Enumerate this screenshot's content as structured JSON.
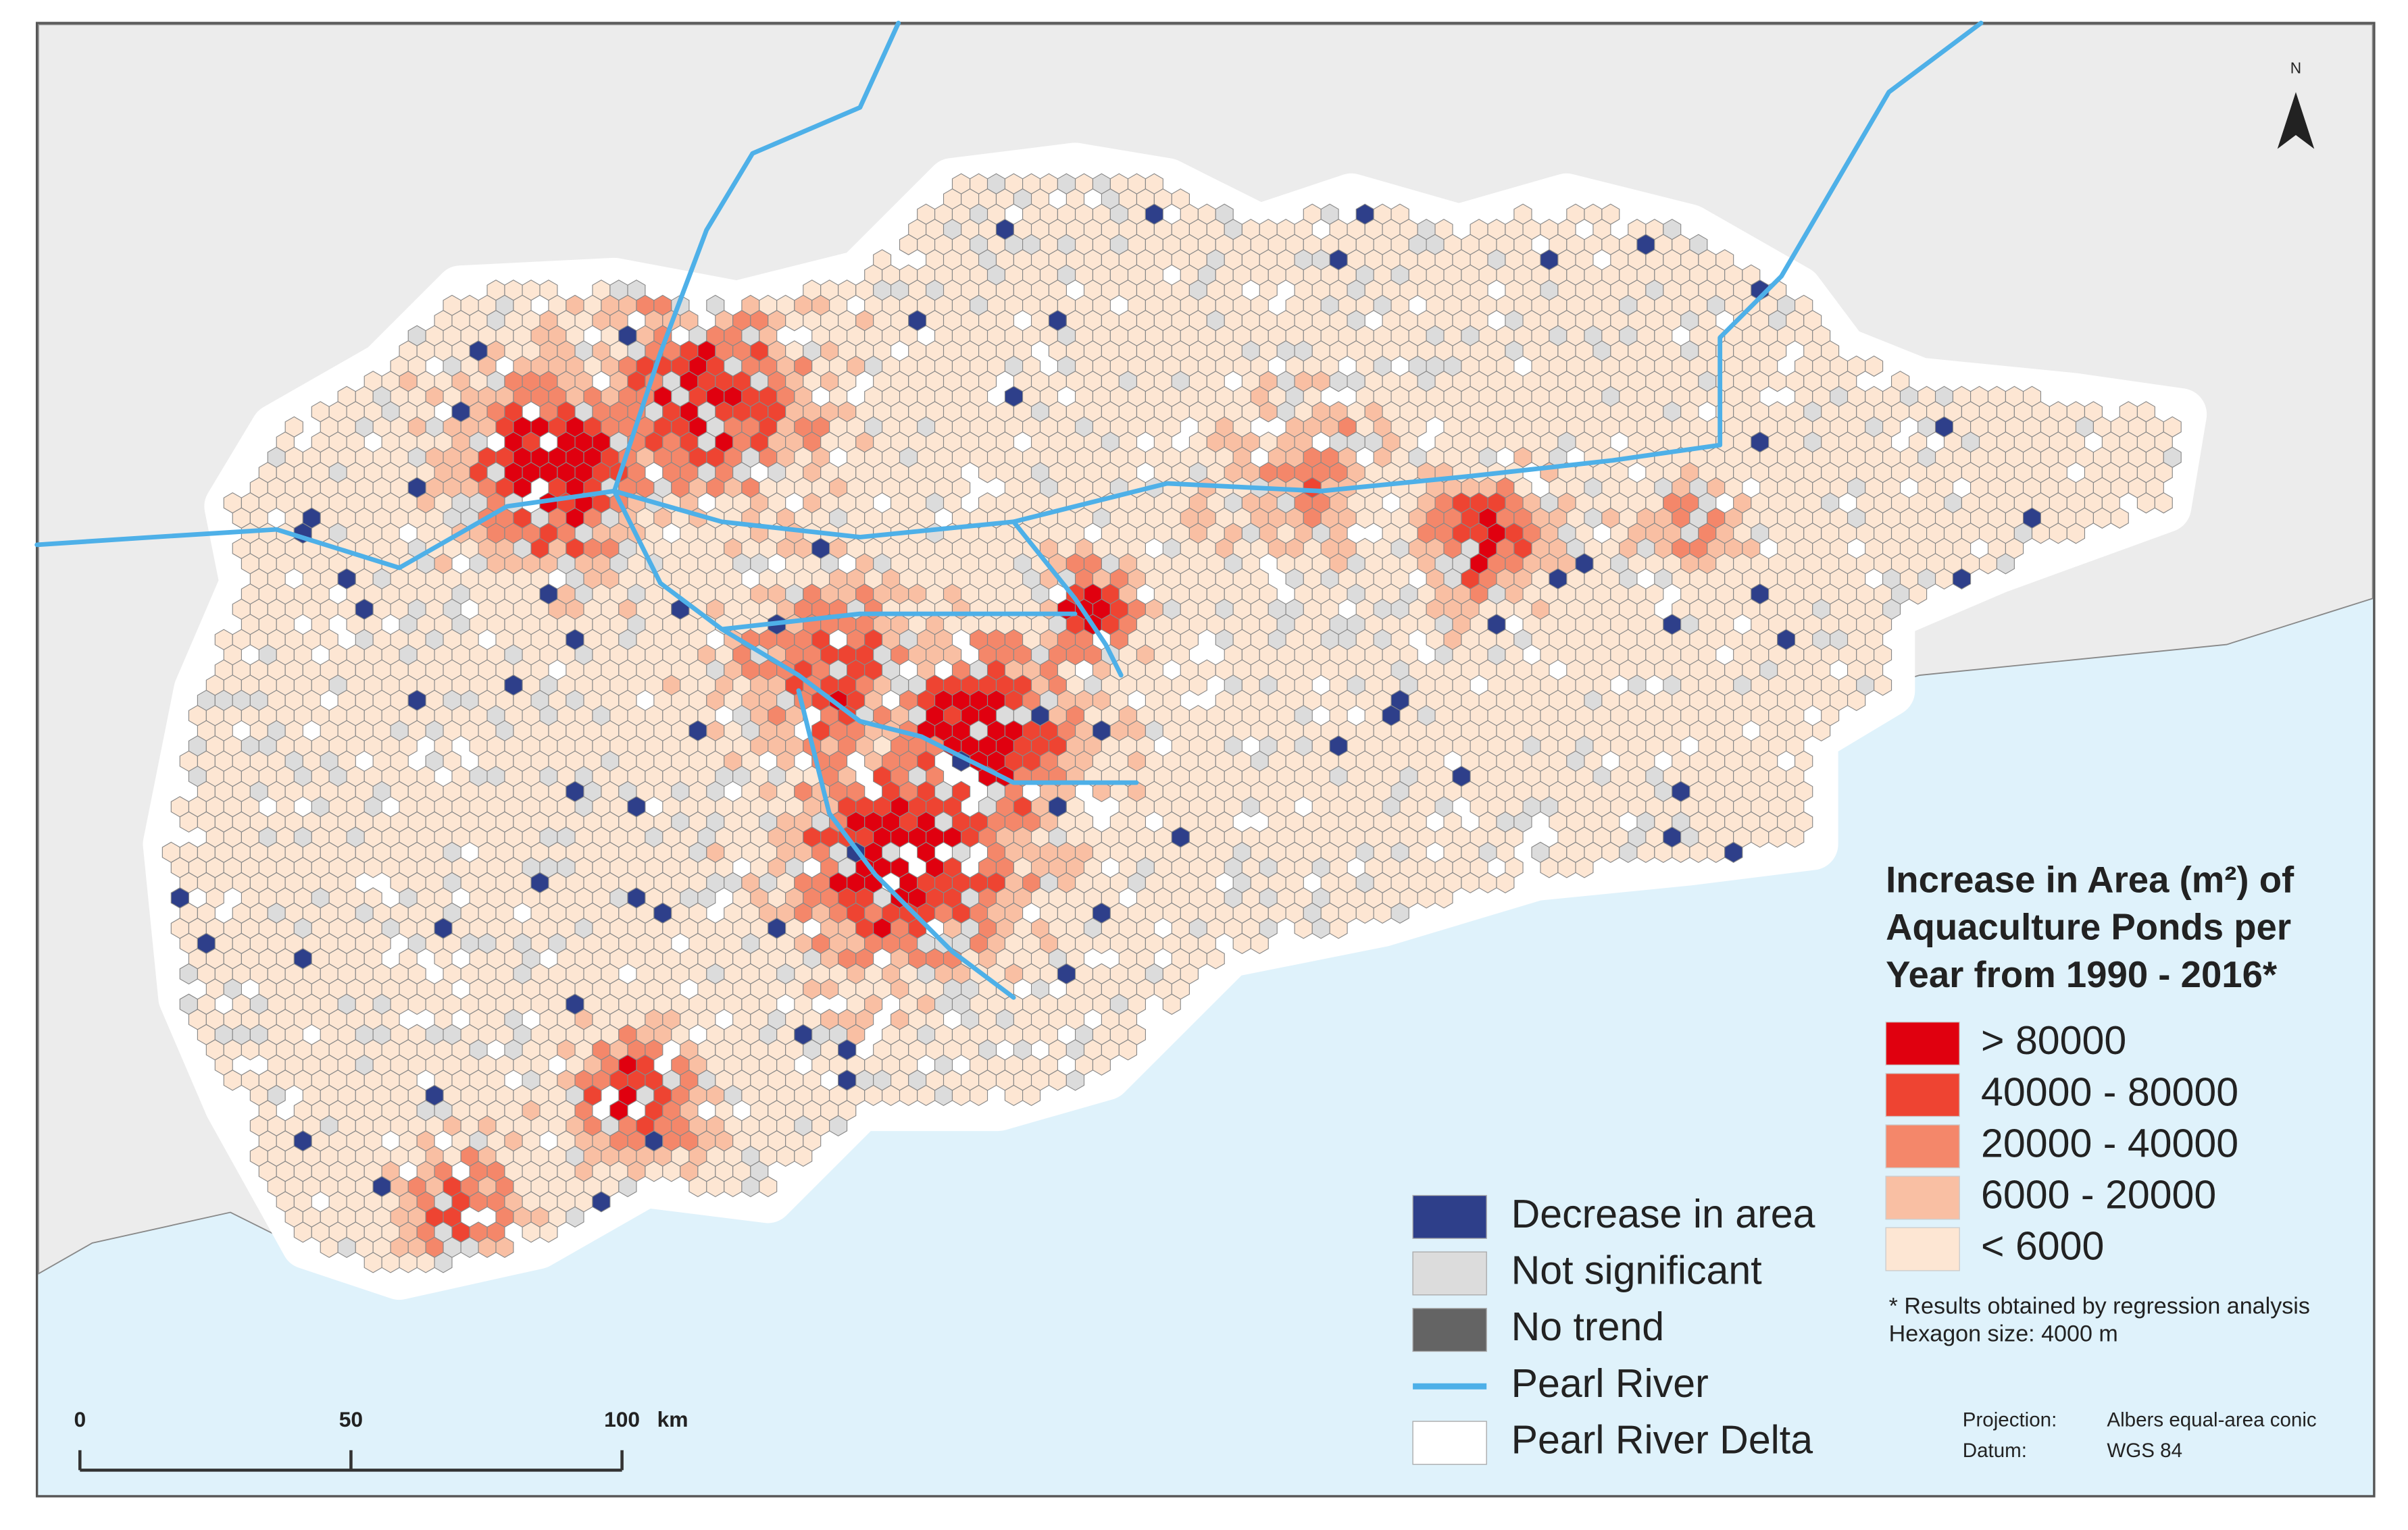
{
  "map": {
    "north": "N",
    "legend": {
      "title_lines": [
        "Increase in Area (m²) of",
        "Aquaculture Ponds per",
        "Year from 1990 - 2016*"
      ],
      "classes": [
        {
          "label": "> 80000",
          "color": "#e0000f"
        },
        {
          "label": "40000 - 80000",
          "color": "#ee4432"
        },
        {
          "label": "20000 - 40000",
          "color": "#f4876a"
        },
        {
          "label": "6000 - 20000",
          "color": "#f9bfa3"
        },
        {
          "label": "< 6000",
          "color": "#fde6d3"
        }
      ],
      "items": [
        {
          "label": "Decrease in area",
          "color": "#2e3f8a"
        },
        {
          "label": "Not significant",
          "color": "#dcdcdc"
        },
        {
          "label": "No trend",
          "color": "#646464"
        },
        {
          "label": "Pearl River",
          "color": "#4eb0e8"
        },
        {
          "label": "Pearl River Delta",
          "color": "#ffffff"
        }
      ],
      "notes": [
        "* Results obtained by regression analysis",
        "Hexagon size: 4000 m"
      ]
    },
    "scale_bar": {
      "labels": [
        "0",
        "50",
        "100"
      ],
      "unit": "km"
    },
    "projection": {
      "label": "Projection:",
      "value": "Albers equal-area conic"
    },
    "datum": {
      "label": "Datum:",
      "value": "WGS 84"
    }
  }
}
